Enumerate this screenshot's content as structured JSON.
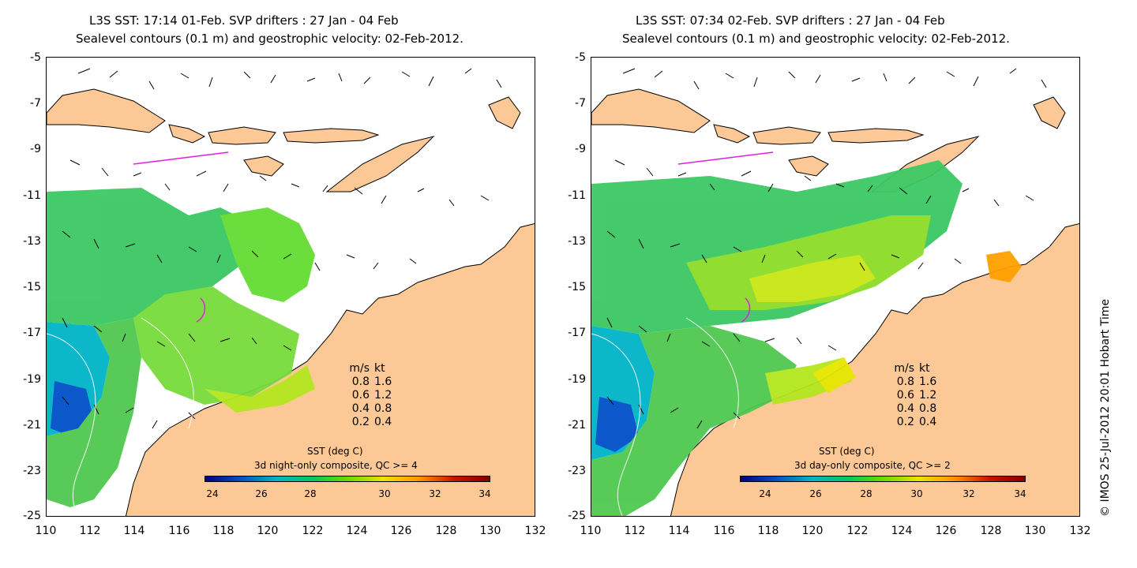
{
  "panels": [
    {
      "title_line1": "L3S SST: 17:14 01-Feb. SVP drifters : 27 Jan - 04 Feb",
      "title_line2": "Sealevel contours (0.1 m) and geostrophic velocity: 02-Feb-2012.",
      "colorbar_title": "SST (deg C)",
      "colorbar_subtitle": "3d night-only composite, QC >= 4",
      "colorbar_ticks": [
        "24",
        "26",
        "28",
        "30",
        "32",
        "34"
      ]
    },
    {
      "title_line1": "L3S SST: 07:34 02-Feb. SVP drifters : 27 Jan - 04 Feb",
      "title_line2": "Sealevel contours (0.1 m) and geostrophic velocity: 02-Feb-2012.",
      "colorbar_title": "SST (deg C)",
      "colorbar_subtitle": "3d day-only composite, QC >= 2",
      "colorbar_ticks": [
        "24",
        "26",
        "28",
        "30",
        "32",
        "34"
      ]
    }
  ],
  "axes": {
    "lat_ticks": [
      "-5",
      "-7",
      "-9",
      "-11",
      "-13",
      "-15",
      "-17",
      "-19",
      "-21",
      "-23",
      "-25"
    ],
    "lon_ticks": [
      "110",
      "112",
      "114",
      "116",
      "118",
      "120",
      "122",
      "124",
      "126",
      "128",
      "130",
      "132"
    ],
    "lat_range": [
      -25,
      -5
    ],
    "lon_range": [
      110,
      132
    ]
  },
  "velocity_legend": {
    "header_ms": "m/s",
    "header_kt": "kt",
    "rows": [
      {
        "ms": "0.8",
        "kt": "1.6"
      },
      {
        "ms": "0.6",
        "kt": "1.2"
      },
      {
        "ms": "0.4",
        "kt": "0.8"
      },
      {
        "ms": "0.2",
        "kt": "0.4"
      }
    ]
  },
  "colors": {
    "land": "#fbc896",
    "drifter": "#e020e0",
    "sst_scale": [
      "#00007f",
      "#0050c8",
      "#00b4c8",
      "#00c864",
      "#64dc00",
      "#e6e600",
      "#ff9600",
      "#c81400",
      "#800000"
    ]
  },
  "credit": "© IMOS 25-Jul-2012 20:01 Hobart Time"
}
